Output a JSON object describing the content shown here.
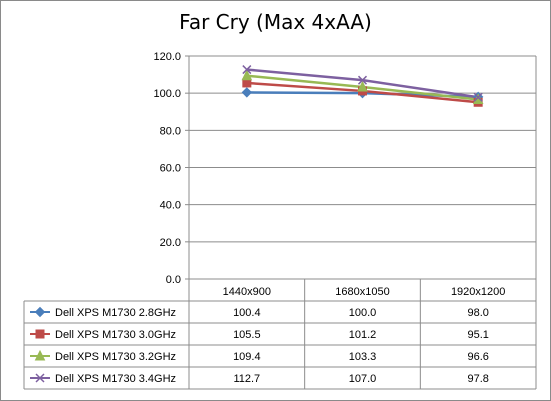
{
  "chart_data": {
    "type": "line",
    "title": "Far Cry (Max 4xAA)",
    "categories": [
      "1440x900",
      "1680x1050",
      "1920x1200"
    ],
    "ylim": [
      0,
      120
    ],
    "yticks": [
      "0.0",
      "20.0",
      "40.0",
      "60.0",
      "80.0",
      "100.0",
      "120.0"
    ],
    "grid": true,
    "legend": "data-table",
    "series": [
      {
        "name": "Dell XPS M1730 2.8GHz",
        "values": [
          100.4,
          100.0,
          98.0
        ],
        "labels": [
          "100.4",
          "100.0",
          "98.0"
        ],
        "color": "#4a7ebb",
        "marker": "diamond"
      },
      {
        "name": "Dell XPS M1730 3.0GHz",
        "values": [
          105.5,
          101.2,
          95.1
        ],
        "labels": [
          "105.5",
          "101.2",
          "95.1"
        ],
        "color": "#be4b48",
        "marker": "square"
      },
      {
        "name": "Dell XPS M1730 3.2GHz",
        "values": [
          109.4,
          103.3,
          96.6
        ],
        "labels": [
          "109.4",
          "103.3",
          "96.6"
        ],
        "color": "#98b954",
        "marker": "triangle"
      },
      {
        "name": "Dell XPS M1730 3.4GHz",
        "values": [
          112.7,
          107.0,
          97.8
        ],
        "labels": [
          "112.7",
          "107.0",
          "97.8"
        ],
        "color": "#7d60a0",
        "marker": "x"
      }
    ]
  }
}
